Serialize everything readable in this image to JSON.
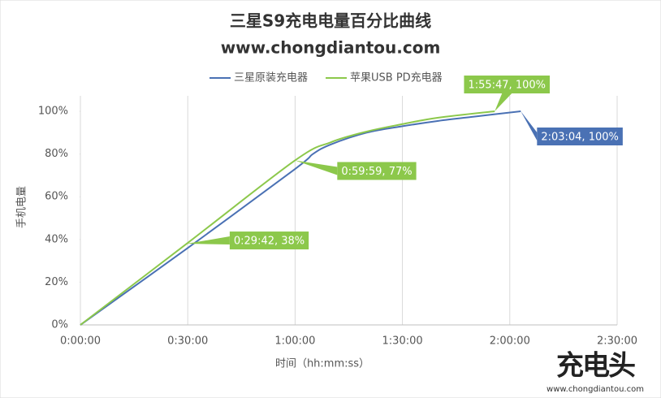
{
  "chart_data": {
    "type": "line",
    "title": "三星S9充电电量百分比曲线",
    "subtitle": "www.chongdiantou.com",
    "x_label": "时间（hh:mm:ss）",
    "y_label": "手机电量",
    "xlim": [
      0,
      9000
    ],
    "xticks": [
      {
        "value": 0,
        "label": "0:00:00"
      },
      {
        "value": 1800,
        "label": "0:30:00"
      },
      {
        "value": 3600,
        "label": "1:00:00"
      },
      {
        "value": 5400,
        "label": "1:30:00"
      },
      {
        "value": 7200,
        "label": "2:00:00"
      },
      {
        "value": 9000,
        "label": "2:30:00"
      }
    ],
    "ylim": [
      0,
      100
    ],
    "yticks": [
      {
        "value": 0,
        "label": "0%"
      },
      {
        "value": 20,
        "label": "20%"
      },
      {
        "value": 40,
        "label": "40%"
      },
      {
        "value": 60,
        "label": "60%"
      },
      {
        "value": 80,
        "label": "80%"
      },
      {
        "value": 100,
        "label": "100%"
      }
    ],
    "grid": "x",
    "legend": "top",
    "series": [
      {
        "name": "三星原装充电器",
        "color": "#4a71b4",
        "x": [
          0,
          1800,
          3600,
          3900,
          4200,
          4800,
          5400,
          6000,
          6600,
          7384
        ],
        "values": [
          0,
          36,
          73,
          80,
          84.5,
          90,
          93,
          95.5,
          97.5,
          100
        ],
        "value_labels": [
          null,
          null,
          null,
          null,
          null,
          null,
          null,
          null,
          null,
          "2:03:04, 100%"
        ]
      },
      {
        "name": "苹果USB PD充电器",
        "color": "#8cc84b",
        "x": [
          0,
          1782,
          3599,
          4200,
          4800,
          5400,
          6000,
          6947
        ],
        "values": [
          0,
          38,
          77,
          85.5,
          90.5,
          94,
          97,
          100
        ],
        "value_labels": [
          null,
          "0:29:42, 38%",
          "0:59:59, 77%",
          null,
          null,
          null,
          null,
          "1:55:47, 100%"
        ]
      }
    ],
    "watermark": {
      "logo": "充电头",
      "url": "www.chongdiantou.com"
    }
  }
}
